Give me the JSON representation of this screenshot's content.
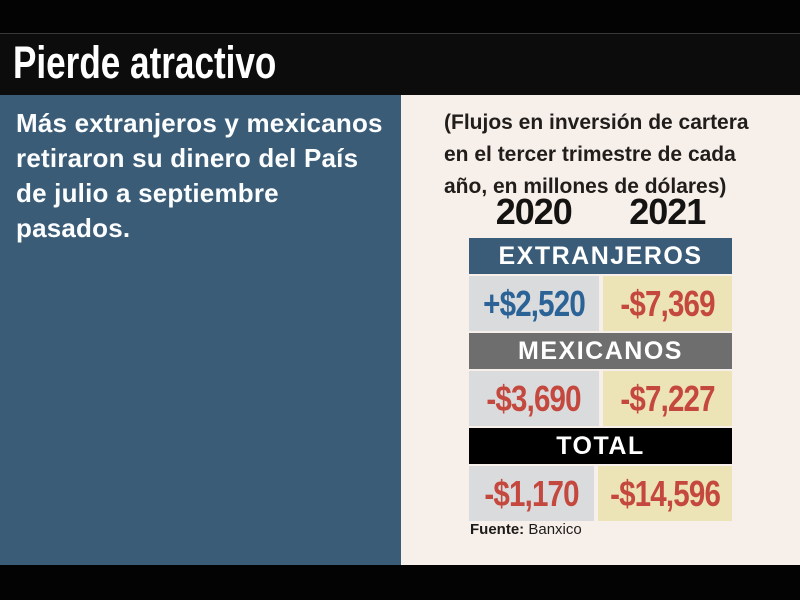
{
  "header": {
    "title": "Pierde atractivo"
  },
  "left_panel": {
    "lead_lines": [
      "Más extranjeros y mexicanos",
      "retiraron su dinero del País",
      "de julio a septiembre",
      "pasados."
    ]
  },
  "right_panel": {
    "note_lines": [
      "(Flujos en inversión de cartera",
      "en el tercer trimestre de cada",
      "año, en millones de dólares)"
    ],
    "years": [
      "2020",
      "2021"
    ],
    "sections": [
      {
        "label": "EXTRANJEROS",
        "header_bg": "#3a5c78",
        "values": [
          {
            "text": "+$2,520",
            "color": "#2b6397"
          },
          {
            "text": "-$7,369",
            "color": "#c4483e"
          }
        ]
      },
      {
        "label": "MEXICANOS",
        "header_bg": "#6e6e6e",
        "values": [
          {
            "text": "-$3,690",
            "color": "#c4483e"
          },
          {
            "text": "-$7,227",
            "color": "#c4483e"
          }
        ]
      },
      {
        "label": "TOTAL",
        "header_bg": "#000000",
        "values": [
          {
            "text": "-$1,170",
            "color": "#c4483e"
          },
          {
            "text": "-$14,596",
            "color": "#c4483e"
          }
        ]
      }
    ],
    "source": {
      "label": "Fuente:",
      "value": "Banxico"
    }
  },
  "colors": {
    "panel_blue": "#3b5c77",
    "panel_cream": "#f7efe9",
    "cell_gray": "#dadbdd",
    "cell_khaki": "#ece4b6",
    "positive_blue": "#2b6397",
    "negative_red": "#c4483e",
    "header_gray": "#6e6e6e",
    "header_black": "#000000",
    "title_band_black": "#0c0c0c",
    "text_white": "#ffffff"
  },
  "chart_data": {
    "type": "table",
    "title": "Pierde atractivo",
    "subtitle": "Más extranjeros y mexicanos retiraron su dinero del País de julio a septiembre pasados.",
    "note": "(Flujos en inversión de cartera en el tercer trimestre de cada año, en millones de dólares)",
    "unit": "millones de dólares",
    "columns": [
      "2020",
      "2021"
    ],
    "rows": [
      {
        "label": "EXTRANJEROS",
        "values": [
          2520,
          -7369
        ],
        "display": [
          "+$2,520",
          "-$7,369"
        ]
      },
      {
        "label": "MEXICANOS",
        "values": [
          -3690,
          -7227
        ],
        "display": [
          "-$3,690",
          "-$7,227"
        ]
      },
      {
        "label": "TOTAL",
        "values": [
          -1170,
          -14596
        ],
        "display": [
          "-$1,170",
          "-$14,596"
        ]
      }
    ],
    "source": "Fuente: Banxico"
  }
}
